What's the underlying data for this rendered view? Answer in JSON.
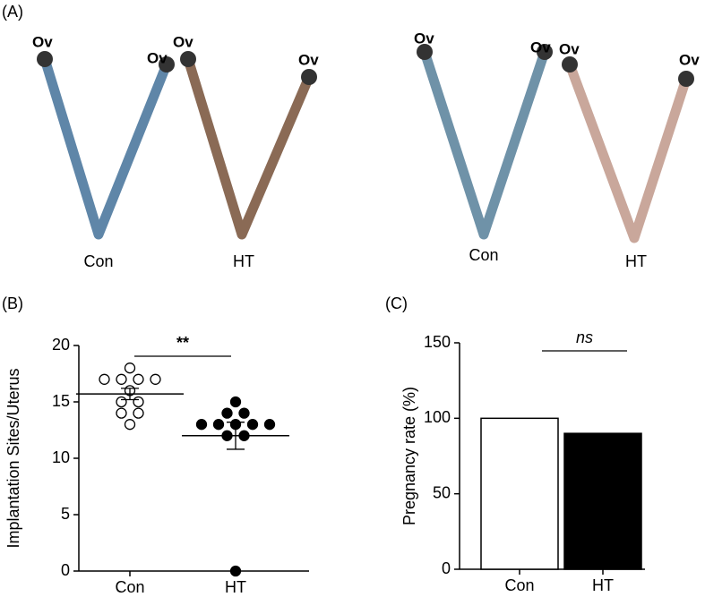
{
  "panel_a": {
    "label": "(A)",
    "organ_labels": [
      "Ov",
      "Ov",
      "Ov",
      "Ov",
      "Ov",
      "Ov",
      "Ov",
      "Ov"
    ],
    "group_labels": [
      "Con",
      "HT",
      "Con",
      "HT"
    ]
  },
  "chart_data": [
    {
      "type": "dot",
      "panel_label": "(B)",
      "y_label": "Implantation Sites/Uterus",
      "categories": [
        "Con",
        "HT"
      ],
      "points": [
        [
          18,
          17,
          17,
          17,
          17,
          16,
          15,
          15,
          14,
          14,
          13
        ],
        [
          15,
          14,
          14,
          13,
          13,
          13,
          13,
          13,
          12,
          12,
          0
        ]
      ],
      "means": [
        15.7,
        12.0
      ],
      "errors": [
        0.5,
        1.2
      ],
      "colors": [
        "#ffffff",
        "#000000"
      ],
      "ylim": [
        0,
        20
      ],
      "yticks": [
        0,
        5,
        10,
        15,
        20
      ],
      "annotation": "**"
    },
    {
      "type": "bar",
      "panel_label": "(C)",
      "y_label": "Pregnancy rate (%)",
      "categories": [
        "Con",
        "HT"
      ],
      "values": [
        100,
        90
      ],
      "colors": [
        "#ffffff",
        "#000000"
      ],
      "ylim": [
        0,
        150
      ],
      "yticks": [
        0,
        50,
        100,
        150
      ],
      "annotation": "ns"
    }
  ]
}
